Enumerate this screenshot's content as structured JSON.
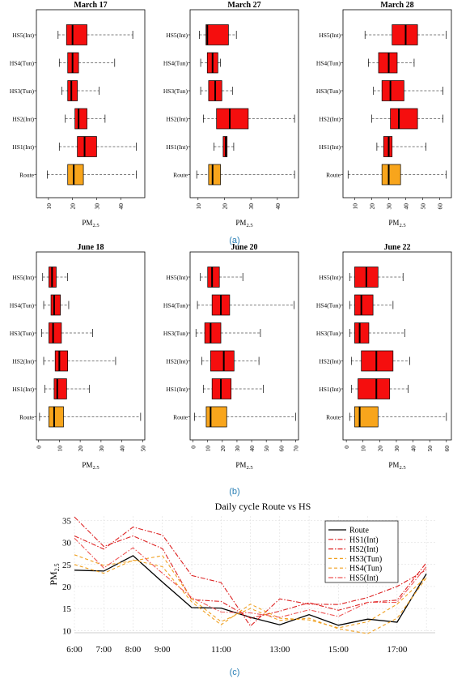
{
  "chart_data": [
    {
      "type": "boxplot",
      "title": "March 17",
      "xlabel": "PM2.5",
      "xlim": [
        5,
        50
      ],
      "xticks": [
        10,
        20,
        30,
        40
      ],
      "categories": [
        "HS5(Int)",
        "HS4(Tun)",
        "HS3(Tun)",
        "HS2(Int)",
        "HS1(Int)",
        "Route"
      ],
      "stats": [
        {
          "min": 14,
          "q1": 17.5,
          "median": 20,
          "q3": 26,
          "max": 45
        },
        {
          "min": 14.5,
          "q1": 18,
          "median": 20,
          "q3": 22.5,
          "max": 37.5
        },
        {
          "min": 15.5,
          "q1": 18,
          "median": 19.5,
          "q3": 22,
          "max": 31
        },
        {
          "min": 17,
          "q1": 21,
          "median": 22.5,
          "q3": 26,
          "max": 33.5
        },
        {
          "min": 14.5,
          "q1": 22,
          "median": 25,
          "q3": 30,
          "max": 46.5
        },
        {
          "min": 9.5,
          "q1": 18,
          "median": 20.5,
          "q3": 24.5,
          "max": 46.5
        }
      ]
    },
    {
      "type": "boxplot",
      "title": "March 27",
      "xlabel": "PM2.5",
      "xlim": [
        7,
        48
      ],
      "xticks": [
        10,
        20,
        30,
        40
      ],
      "categories": [
        "HS5(Int)",
        "HS4(Tun)",
        "HS3(Tun)",
        "HS2(Int)",
        "HS1(Int)",
        "Route"
      ],
      "stats": [
        {
          "min": 10.5,
          "q1": 13,
          "median": 13.5,
          "q3": 21.5,
          "max": 24.5
        },
        {
          "min": 11,
          "q1": 13.5,
          "median": 15.5,
          "q3": 17.5,
          "max": 18.5
        },
        {
          "min": 11,
          "q1": 14,
          "median": 16.5,
          "q3": 19,
          "max": 23
        },
        {
          "min": 12,
          "q1": 17,
          "median": 22,
          "q3": 29,
          "max": 46.5
        },
        {
          "min": 16,
          "q1": 19.5,
          "median": 20.5,
          "q3": 21,
          "max": 23.5
        },
        {
          "min": 9.5,
          "q1": 14,
          "median": 15.5,
          "q3": 18.5,
          "max": 46.5
        }
      ]
    },
    {
      "type": "boxplot",
      "title": "March 28",
      "xlabel": "PM2.5",
      "xlim": [
        3,
        67
      ],
      "xticks": [
        10,
        20,
        30,
        40,
        50,
        60
      ],
      "categories": [
        "HS5(Int)",
        "HS4(Tun)",
        "HS3(Tun)",
        "HS2(Int)",
        "HS1(Int)",
        "Route"
      ],
      "stats": [
        {
          "min": 16,
          "q1": 32,
          "median": 40,
          "q3": 47,
          "max": 64
        },
        {
          "min": 18,
          "q1": 24,
          "median": 30,
          "q3": 35,
          "max": 45
        },
        {
          "min": 21,
          "q1": 26,
          "median": 31,
          "q3": 39,
          "max": 62
        },
        {
          "min": 20,
          "q1": 31,
          "median": 36,
          "q3": 47,
          "max": 62
        },
        {
          "min": 23,
          "q1": 27,
          "median": 30,
          "q3": 32,
          "max": 52
        },
        {
          "min": 6,
          "q1": 26,
          "median": 30,
          "q3": 37,
          "max": 64
        }
      ]
    },
    {
      "type": "boxplot",
      "title": "June 18",
      "xlabel": "PM2.5",
      "xlim": [
        -1,
        51
      ],
      "xticks": [
        0,
        10,
        20,
        30,
        40,
        50
      ],
      "categories": [
        "HS5(Int)",
        "HS4(Tun)",
        "HS3(Tun)",
        "HS2(Int)",
        "HS1(Int)",
        "Route"
      ],
      "stats": [
        {
          "min": 2,
          "q1": 5,
          "median": 6.5,
          "q3": 8.5,
          "max": 14
        },
        {
          "min": 2.5,
          "q1": 6,
          "median": 7.5,
          "q3": 10.5,
          "max": 14.5
        },
        {
          "min": 1.5,
          "q1": 5,
          "median": 7,
          "q3": 11,
          "max": 26
        },
        {
          "min": 2.5,
          "q1": 8,
          "median": 10,
          "q3": 14,
          "max": 37
        },
        {
          "min": 3,
          "q1": 7.5,
          "median": 9,
          "q3": 13.5,
          "max": 24.5
        },
        {
          "min": 0.5,
          "q1": 5,
          "median": 7.5,
          "q3": 12,
          "max": 49
        }
      ]
    },
    {
      "type": "boxplot",
      "title": "June 20",
      "xlabel": "PM2.5",
      "xlim": [
        -2,
        72
      ],
      "xticks": [
        0,
        10,
        20,
        30,
        40,
        50,
        60,
        70
      ],
      "categories": [
        "HS5(Int)",
        "HS4(Tun)",
        "HS3(Tun)",
        "HS2(Int)",
        "HS1(Int)",
        "Route"
      ],
      "stats": [
        {
          "min": 5,
          "q1": 10,
          "median": 13,
          "q3": 18,
          "max": 34
        },
        {
          "min": 3,
          "q1": 13,
          "median": 19,
          "q3": 25,
          "max": 69
        },
        {
          "min": 2,
          "q1": 8,
          "median": 12,
          "q3": 19,
          "max": 46
        },
        {
          "min": 6,
          "q1": 12,
          "median": 21,
          "q3": 28,
          "max": 45
        },
        {
          "min": 7,
          "q1": 13,
          "median": 19,
          "q3": 26,
          "max": 48
        },
        {
          "min": 1,
          "q1": 9,
          "median": 12,
          "q3": 23,
          "max": 70
        }
      ]
    },
    {
      "type": "boxplot",
      "title": "June 22",
      "xlabel": "PM2.5",
      "xlim": [
        -2,
        63
      ],
      "xticks": [
        0,
        10,
        20,
        30,
        40,
        50,
        60
      ],
      "categories": [
        "HS5(Int)",
        "HS4(Tun)",
        "HS3(Tun)",
        "HS2(Int)",
        "HS1(Int)",
        "Route"
      ],
      "stats": [
        {
          "min": 2,
          "q1": 5,
          "median": 12,
          "q3": 19,
          "max": 34
        },
        {
          "min": 2,
          "q1": 5,
          "median": 9,
          "q3": 16,
          "max": 28
        },
        {
          "min": 2,
          "q1": 5,
          "median": 8,
          "q3": 13.5,
          "max": 35
        },
        {
          "min": 3,
          "q1": 9,
          "median": 18,
          "q3": 28,
          "max": 38
        },
        {
          "min": 3,
          "q1": 7,
          "median": 18,
          "q3": 26,
          "max": 37
        },
        {
          "min": 2,
          "q1": 5,
          "median": 8,
          "q3": 19,
          "max": 60
        }
      ]
    },
    {
      "type": "line",
      "title": "Daily cycle Route vs HS",
      "ylabel": "PM2.5",
      "xlim": [
        6,
        18.3
      ],
      "ylim": [
        9.5,
        36
      ],
      "yticks": [
        10,
        15,
        20,
        25,
        30,
        35
      ],
      "xticks": [
        {
          "v": 6,
          "label": "6:00"
        },
        {
          "v": 7,
          "label": "7:00"
        },
        {
          "v": 8,
          "label": "8:00"
        },
        {
          "v": 9,
          "label": "9:00"
        },
        {
          "v": 11,
          "label": "11:00"
        },
        {
          "v": 13,
          "label": "13:00"
        },
        {
          "v": 15,
          "label": "15:00"
        },
        {
          "v": 17,
          "label": "17:00"
        }
      ],
      "grid": true,
      "legend_position": "top-right",
      "x": [
        6,
        7,
        8,
        9,
        10,
        11,
        12,
        13,
        14,
        15,
        16,
        17,
        18
      ],
      "series": [
        {
          "name": "Route",
          "color": "#000000",
          "dash": "",
          "values": [
            23.7,
            23.5,
            27,
            21,
            15.2,
            15.1,
            13,
            11.3,
            13.6,
            11.2,
            12.6,
            11.9,
            22.9
          ]
        },
        {
          "name": "HS1(Int)",
          "color": "#dd2222",
          "dash": "6,2,1.5,2",
          "values": [
            35.8,
            29.1,
            31.5,
            28.6,
            17,
            16.6,
            12.8,
            14.4,
            16.3,
            14.6,
            16.4,
            16.9,
            25.4
          ]
        },
        {
          "name": "HS2(Int)",
          "color": "#dd2222",
          "dash": "6,2,1.5,2",
          "values": [
            31.5,
            28.5,
            33.5,
            31.7,
            22.5,
            20.9,
            11,
            17.2,
            16,
            15.9,
            17.5,
            20,
            23.8
          ]
        },
        {
          "name": "HS3(Tun)",
          "color": "#f0a020",
          "dash": "4,3",
          "values": [
            25,
            23,
            26,
            24.5,
            16.5,
            11.3,
            16,
            12.8,
            12.4,
            10.6,
            12,
            16,
            22.2
          ]
        },
        {
          "name": "HS4(Tun)",
          "color": "#f0a020",
          "dash": "4,3",
          "values": [
            27.2,
            24.8,
            25.8,
            27,
            17.2,
            12,
            15,
            12.3,
            12.8,
            10.4,
            9.3,
            12.8,
            22
          ]
        },
        {
          "name": "HS5(Int)",
          "color": "#ee5555",
          "dash": "6,2,1.5,2",
          "values": [
            31,
            24.2,
            28.8,
            23,
            17.5,
            14.2,
            14,
            13,
            14.7,
            13.2,
            16.4,
            16.4,
            24.5
          ]
        }
      ]
    }
  ],
  "captions": [
    "(a)",
    "(b)",
    "(c)"
  ]
}
